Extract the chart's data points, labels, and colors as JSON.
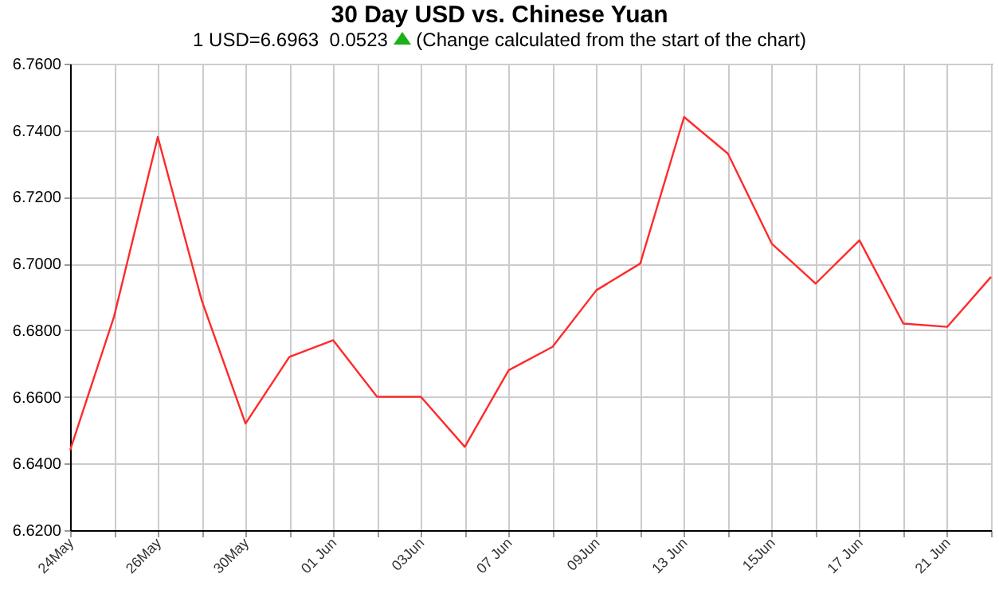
{
  "chart_data": {
    "type": "line",
    "title": "30 Day USD vs. Chinese Yuan",
    "subtitle": "1 USD=6.6963  0.0523",
    "annotations": [
      "(Change calculated from the start of the chart)"
    ],
    "categories": [
      "24May",
      null,
      "26May",
      null,
      "30May",
      null,
      "01 Jun",
      null,
      "03Jun",
      null,
      "07 Jun",
      null,
      "09Jun",
      null,
      "13 Jun",
      null,
      "15Jun",
      null,
      "17 Jun",
      null,
      "21 Jun",
      null
    ],
    "series": [
      {
        "color": "#ff2a2a",
        "values": [
          6.644,
          6.684,
          6.738,
          6.689,
          6.652,
          6.672,
          6.677,
          6.66,
          6.66,
          6.645,
          6.668,
          6.675,
          6.692,
          6.7,
          6.744,
          6.733,
          6.706,
          6.694,
          6.707,
          6.682,
          6.681,
          6.696
        ]
      }
    ],
    "ylim": [
      6.62,
      6.76
    ],
    "yticks": [
      {
        "value": 6.62,
        "label": "6.6200"
      },
      {
        "value": 6.64,
        "label": "6.6400"
      },
      {
        "value": 6.66,
        "label": "6.6600"
      },
      {
        "value": 6.68,
        "label": "6.6800"
      },
      {
        "value": 6.7,
        "label": "6.7000"
      },
      {
        "value": 6.72,
        "label": "6.7200"
      },
      {
        "value": 6.74,
        "label": "6.7400"
      },
      {
        "value": 6.76,
        "label": "6.7600"
      }
    ],
    "grid": true,
    "marker": "none",
    "line_style": "solid"
  }
}
